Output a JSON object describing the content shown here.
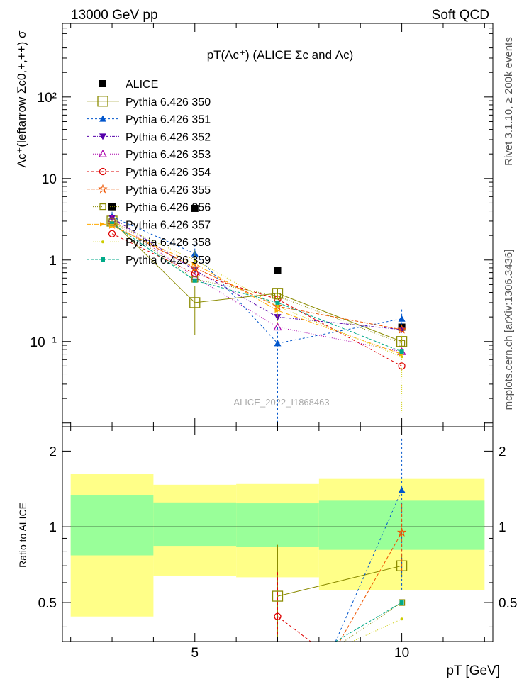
{
  "header": {
    "energy_label": "13000 GeV pp",
    "process_label": "Soft QCD"
  },
  "side_labels": {
    "rivet": "Rivet 3.1.10, ≥ 200k events",
    "source": "mcplots.cern.ch [arXiv:1306.3436]"
  },
  "colors": {
    "alice": "#000000",
    "band_stat": "#99ff99",
    "band_total": "#ffff88"
  },
  "chart_data": [
    {
      "type": "line",
      "panel": "main",
      "title": "pT(Λc⁺) (ALICE Σc and Λc)",
      "ylabel": "Λc⁺(leftarrow Σc0,+,++) σ",
      "yscale": "log",
      "xlim": [
        1.8,
        12.2
      ],
      "ylim": [
        0.009,
        800
      ],
      "x_ticks": [
        5,
        10
      ],
      "y_ticks": [
        {
          "value": 0.1,
          "label": "10⁻¹"
        },
        {
          "value": 1,
          "label": "1"
        },
        {
          "value": 10,
          "label": "10"
        },
        {
          "value": 100,
          "label": "10²"
        }
      ],
      "watermark": "ALICE_2022_I1868463",
      "x": [
        3,
        5,
        7,
        10
      ],
      "series": [
        {
          "name": "ALICE",
          "color": "#000000",
          "marker": "square-filled",
          "dash": "",
          "values": [
            4.5,
            4.3,
            0.75,
            0.15
          ]
        },
        {
          "name": "Pythia 6.426 350",
          "color": "#8b8b00",
          "marker": "square-open-large",
          "dash": "",
          "values": [
            3.0,
            0.3,
            0.39,
            0.1
          ]
        },
        {
          "name": "Pythia 6.426 351",
          "color": "#0055cc",
          "marker": "triangle-up",
          "dash": "3,3",
          "values": [
            3.4,
            1.2,
            0.095,
            0.19
          ]
        },
        {
          "name": "Pythia 6.426 352",
          "color": "#5500aa",
          "marker": "triangle-down",
          "dash": "4,2,1,2",
          "values": [
            3.3,
            0.75,
            0.2,
            0.14
          ]
        },
        {
          "name": "Pythia 6.426 353",
          "color": "#aa00aa",
          "marker": "triangle-open",
          "dash": "1,2",
          "values": [
            3.2,
            0.62,
            0.15,
            0.075
          ]
        },
        {
          "name": "Pythia 6.426 354",
          "color": "#dd0000",
          "marker": "circle-open",
          "dash": "4,3",
          "values": [
            2.1,
            0.68,
            0.33,
            0.05
          ]
        },
        {
          "name": "Pythia 6.426 355",
          "color": "#ee5500",
          "marker": "star",
          "dash": "5,2",
          "values": [
            2.7,
            0.8,
            0.27,
            0.14
          ]
        },
        {
          "name": "Pythia 6.426 356",
          "color": "#888800",
          "marker": "square-open",
          "dash": "1,2",
          "values": [
            3.0,
            0.58,
            0.36,
            0.095
          ]
        },
        {
          "name": "Pythia 6.426 357",
          "color": "#ffaa00",
          "marker": "arrow-right",
          "dash": "6,2,1,2",
          "values": [
            2.6,
            0.9,
            0.24,
            0.07
          ]
        },
        {
          "name": "Pythia 6.426 358",
          "color": "#cccc00",
          "marker": "dot",
          "dash": "1,2",
          "values": [
            2.9,
            1.0,
            0.27,
            0.065
          ]
        },
        {
          "name": "Pythia 6.426 359",
          "color": "#00aa88",
          "marker": "square-filled-small",
          "dash": "4,2",
          "values": [
            2.8,
            0.56,
            0.3,
            0.075
          ]
        }
      ]
    },
    {
      "type": "line",
      "panel": "ratio",
      "ylabel": "Ratio to ALICE",
      "xlabel": "pT [GeV]",
      "yscale": "log",
      "xlim": [
        1.8,
        12.2
      ],
      "ylim": [
        0.35,
        2.5
      ],
      "x_ticks": [
        5,
        10
      ],
      "y_ticks": [
        {
          "value": 0.5,
          "label": "0.5"
        },
        {
          "value": 1,
          "label": "1"
        },
        {
          "value": 2,
          "label": "2"
        }
      ],
      "bands": [
        {
          "x_range": [
            2,
            4
          ],
          "stat": [
            0.77,
            1.34
          ],
          "total": [
            0.44,
            1.62
          ]
        },
        {
          "x_range": [
            4,
            6
          ],
          "stat": [
            0.84,
            1.25
          ],
          "total": [
            0.64,
            1.47
          ]
        },
        {
          "x_range": [
            6,
            8
          ],
          "stat": [
            0.83,
            1.24
          ],
          "total": [
            0.63,
            1.48
          ]
        },
        {
          "x_range": [
            8,
            12
          ],
          "stat": [
            0.81,
            1.27
          ],
          "total": [
            0.56,
            1.55
          ]
        }
      ],
      "series": [
        {
          "name": "Pythia 6.426 350",
          "color": "#8b8b00",
          "marker": "square-open-large",
          "x": [
            7,
            10
          ],
          "values": [
            0.53,
            0.7
          ]
        },
        {
          "name": "Pythia 6.426 351",
          "color": "#0055cc",
          "marker": "triangle-up",
          "x": [
            8.4,
            10
          ],
          "values": [
            0.35,
            1.4
          ]
        },
        {
          "name": "Pythia 6.426 354",
          "color": "#dd0000",
          "marker": "circle-open",
          "x": [
            7,
            7.8
          ],
          "values": [
            0.44,
            0.35
          ]
        },
        {
          "name": "Pythia 6.426 355",
          "color": "#ee5500",
          "marker": "star",
          "x": [
            8.5,
            10
          ],
          "values": [
            0.35,
            0.95
          ]
        },
        {
          "name": "Pythia 6.426 359",
          "color": "#00aa88",
          "marker": "square-filled-small",
          "x": [
            8.4,
            10
          ],
          "values": [
            0.35,
            0.5
          ]
        },
        {
          "name": "Pythia 6.426 356",
          "color": "#888800",
          "marker": "square-open",
          "x": [
            8.6,
            10
          ],
          "values": [
            0.35,
            0.5
          ]
        },
        {
          "name": "Pythia 6.426 358",
          "color": "#cccc00",
          "marker": "dot",
          "x": [
            8.8,
            10
          ],
          "values": [
            0.35,
            0.43
          ]
        }
      ]
    }
  ]
}
